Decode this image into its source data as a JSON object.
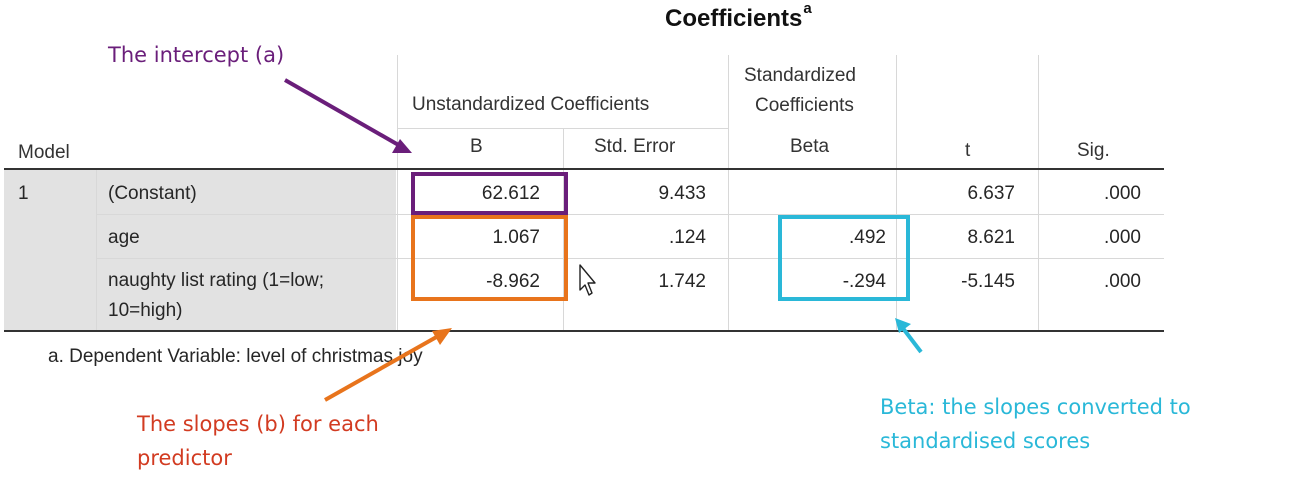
{
  "table": {
    "title": "Coefficients",
    "title_superscript": "a",
    "headers": {
      "model": "Model",
      "unstandardized_group": "Unstandardized Coefficients",
      "standardized_group_line1": "Standardized",
      "standardized_group_line2": "Coefficients",
      "b": "B",
      "std_error": "Std. Error",
      "beta": "Beta",
      "t": "t",
      "sig": "Sig."
    },
    "model_number": "1",
    "rows": [
      {
        "label": "(Constant)",
        "b": "62.612",
        "std_error": "9.433",
        "beta": "",
        "t": "6.637",
        "sig": ".000"
      },
      {
        "label": "age",
        "b": "1.067",
        "std_error": ".124",
        "beta": ".492",
        "t": "8.621",
        "sig": ".000"
      },
      {
        "label_line1": "naughty list rating (1=low;",
        "label_line2": "10=high)",
        "b": "-8.962",
        "std_error": "1.742",
        "beta": "-.294",
        "t": "-5.145",
        "sig": ".000"
      }
    ],
    "footnote": "a. Dependent Variable: level of christmas joy"
  },
  "annotations": {
    "intercept": "The intercept (a)",
    "slopes_line1": "The slopes (b) for each",
    "slopes_line2": "predictor",
    "beta_line1": "Beta: the slopes converted to",
    "beta_line2": "standardised scores"
  },
  "colors": {
    "intercept": "#6a1e7a",
    "slopes": "#e8741c",
    "slopes_text": "#d23b21",
    "beta": "#2ab8d8",
    "row_label_bg": "#e2e2e2"
  }
}
